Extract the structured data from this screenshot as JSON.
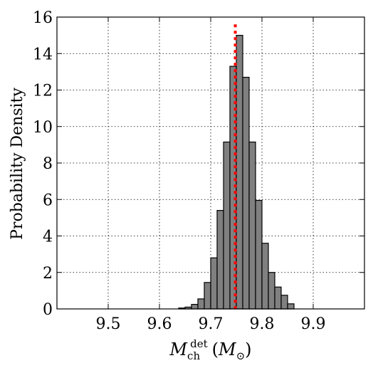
{
  "chart_data": {
    "type": "bar",
    "subtype": "histogram",
    "xlabel": {
      "symbol": "M",
      "subscript": "ch",
      "superscript": "det",
      "unit_open": "(",
      "unit_symbol": "M",
      "unit_subscript": "⊙",
      "unit_close": ")"
    },
    "ylabel": "Probability Density",
    "xlim": [
      9.4,
      10.0
    ],
    "ylim": [
      0,
      16
    ],
    "xticks": [
      9.5,
      9.6,
      9.7,
      9.8,
      9.9
    ],
    "xtick_labels": [
      "9.5",
      "9.6",
      "9.7",
      "9.8",
      "9.9"
    ],
    "yticks": [
      0,
      2,
      4,
      6,
      8,
      10,
      12,
      14,
      16
    ],
    "ytick_labels": [
      "0",
      "2",
      "4",
      "6",
      "8",
      "10",
      "12",
      "14",
      "16"
    ],
    "grid": true,
    "bin_width": 0.0125,
    "bin_starts": [
      9.6375,
      9.65,
      9.6625,
      9.675,
      9.6875,
      9.7,
      9.7125,
      9.725,
      9.7375,
      9.75,
      9.7625,
      9.775,
      9.7875,
      9.8,
      9.8125,
      9.825,
      9.8375,
      9.85
    ],
    "densities": [
      0.05,
      0.1,
      0.25,
      0.55,
      1.45,
      2.8,
      5.4,
      9.15,
      13.3,
      15.0,
      12.7,
      9.15,
      5.95,
      3.6,
      2.0,
      1.2,
      0.75,
      0.28
    ],
    "bar_color": "#808080",
    "reference_line": {
      "x": 9.748,
      "color": "#ff0000",
      "style": "dotted",
      "y_top": 15.6
    }
  }
}
